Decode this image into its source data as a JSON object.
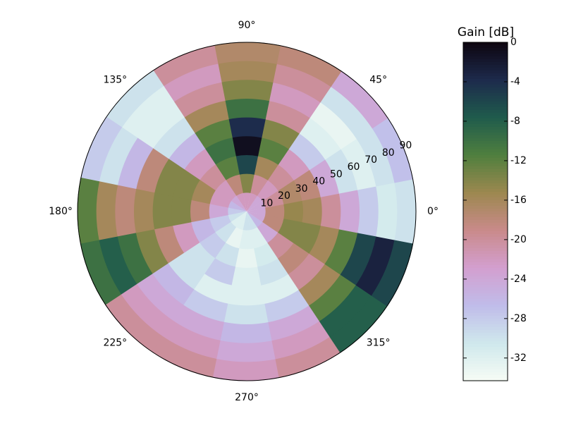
{
  "chart_data": {
    "type": "polar-heatmap",
    "colorbar_label": "Gain [dB]",
    "theta": [
      0,
      22.5,
      45,
      67.5,
      90,
      112.5,
      135,
      157.5,
      180,
      202.5,
      225,
      247.5,
      270,
      292.5,
      315,
      337.5
    ],
    "r": [
      5,
      15,
      25,
      35,
      45,
      55,
      65,
      75,
      85
    ],
    "z": [
      [
        -24,
        -18,
        -15,
        -16,
        -20,
        -24,
        -28,
        -31,
        -30
      ],
      [
        -24,
        -20,
        -17,
        -18,
        -24,
        -30,
        -32,
        -30,
        -27
      ],
      [
        -24,
        -22,
        -20,
        -22,
        -28,
        -32,
        -33,
        -30,
        -24
      ],
      [
        -22,
        -20,
        -16,
        -12,
        -14,
        -20,
        -22,
        -20,
        -18
      ],
      [
        -22,
        -14,
        -6,
        -1,
        -4,
        -10,
        -14,
        -16,
        -17
      ],
      [
        -22,
        -18,
        -12,
        -10,
        -12,
        -16,
        -20,
        -22,
        -20
      ],
      [
        -24,
        -22,
        -20,
        -22,
        -26,
        -30,
        -32,
        -32,
        -30
      ],
      [
        -26,
        -22,
        -16,
        -14,
        -14,
        -18,
        -26,
        -30,
        -28
      ],
      [
        -28,
        -24,
        -18,
        -14,
        -14,
        -16,
        -18,
        -16,
        -12
      ],
      [
        -30,
        -28,
        -26,
        -22,
        -18,
        -14,
        -10,
        -8,
        -10
      ],
      [
        -32,
        -30,
        -28,
        -30,
        -30,
        -26,
        -24,
        -22,
        -20
      ],
      [
        -32,
        -33,
        -30,
        -28,
        -32,
        -28,
        -24,
        -22,
        -20
      ],
      [
        -30,
        -32,
        -33,
        -32,
        -32,
        -30,
        -26,
        -24,
        -22
      ],
      [
        -30,
        -32,
        -31,
        -30,
        -32,
        -28,
        -24,
        -22,
        -20
      ],
      [
        -26,
        -24,
        -20,
        -18,
        -20,
        -16,
        -12,
        -8,
        -8
      ],
      [
        -24,
        -18,
        -14,
        -14,
        -16,
        -12,
        -6,
        -3,
        -6
      ]
    ],
    "rlim": [
      0,
      90
    ],
    "rticks": [
      10,
      20,
      30,
      40,
      50,
      60,
      70,
      80,
      90
    ],
    "thetaticks": [
      {
        "value": 0,
        "label": "0°"
      },
      {
        "value": 45,
        "label": "45°"
      },
      {
        "value": 90,
        "label": "90°"
      },
      {
        "value": 135,
        "label": "135°"
      },
      {
        "value": 180,
        "label": "180°"
      },
      {
        "value": 225,
        "label": "225°"
      },
      {
        "value": 270,
        "label": "270°"
      },
      {
        "value": 315,
        "label": "315°"
      }
    ],
    "clim": [
      -34.3,
      0
    ],
    "cticks": [
      0,
      -4,
      -8,
      -12,
      -16,
      -20,
      -24,
      -28,
      -32
    ],
    "colormap": [
      "#f6fcf5",
      "#cfe8ec",
      "#c0bcea",
      "#d39fcf",
      "#c98a8a",
      "#9c884f",
      "#4f7f3e",
      "#1f5b4c",
      "#1d2a4c",
      "#0d050f"
    ]
  }
}
